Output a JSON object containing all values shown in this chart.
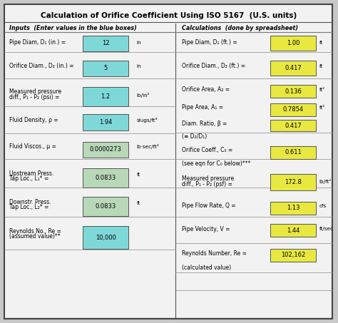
{
  "title": "Calculation of Orifice Coefficient Using ISO 5167  (U.S. units)",
  "col_divider": 0.52,
  "inputs_header": "Inputs  (Enter values in the blue boxes)",
  "calcs_header": "Calculations  (done by spreadsheet)",
  "bg_color": "#c8c8c8",
  "table_bg": "#f2f2f2",
  "border_color": "#888888",
  "cyan_color": "#7fd8d8",
  "green_color": "#b8d8b8",
  "yellow_color": "#e8e840",
  "left_labels": [
    "Pipe Diam, D₁ (in.) =",
    "Orifice Diam., D₂ (in.) =",
    "Measured pressure\ndiff., P₁ - P₂ (psi) =",
    "Fluid Density, ρ =",
    "Fluid Viscos., μ =",
    "Upstream Press.\nTap Loc., L₁* =",
    "Downstr. Press.\nTap Loc., L₂* =",
    "Reynolds No., Re =\n(assumed value)**"
  ],
  "left_values": [
    "12",
    "5",
    "1.2",
    "1.94",
    "0.0000273",
    "0.0833",
    "0.0833",
    "10,000"
  ],
  "left_units": [
    "in",
    "in",
    "lb/in²",
    "slugs/ft³",
    "lb·sec/ft²",
    "ft",
    "ft",
    ""
  ],
  "left_colors": [
    "#7fd8d8",
    "#7fd8d8",
    "#7fd8d8",
    "#7fd8d8",
    "#b8d8b8",
    "#b8d8b8",
    "#b8d8b8",
    "#7fd8d8"
  ],
  "right_rows": [
    {
      "label": "Pipe Diam, D₁ (ft.) =",
      "value": "1.00",
      "unit": "ft",
      "show_box": true
    },
    {
      "label": "Orifice Diam., D₂ (ft.) =",
      "value": "0.417",
      "unit": "ft",
      "show_box": true
    },
    {
      "label": "Orifice Area, A₂ =",
      "value": "0.136",
      "unit": "ft²",
      "show_box": true
    },
    {
      "label": "Pipe Area, A₁ =",
      "value": "0.7854",
      "unit": "ft²",
      "show_box": true
    },
    {
      "label": "Diam. Ratio, β =",
      "value": "0.417",
      "unit": "",
      "show_box": true
    },
    {
      "label": "(≡ D₂/D₁)",
      "value": "",
      "unit": "",
      "show_box": false
    },
    {
      "label": "Orifice Coeff., C₀ =",
      "value": "0.611",
      "unit": "",
      "show_box": true
    },
    {
      "label": "(see eqn for C₀ below)***",
      "value": "",
      "unit": "",
      "show_box": false
    },
    {
      "label": "Measured pressure\ndiff., P₁ - P₂ (psf) =",
      "value": "172.8",
      "unit": "lb/ft²",
      "show_box": true
    },
    {
      "label": "Pipe Flow Rate, Q =",
      "value": "1.13",
      "unit": "cfs",
      "show_box": true
    },
    {
      "label": "Pipe Velocity, V =",
      "value": "1.44",
      "unit": "ft/sec",
      "show_box": true
    },
    {
      "label": "Reynolds Number, Re =",
      "value": "102,162",
      "unit": "",
      "show_box": true
    },
    {
      "label": "(calculated value)",
      "value": "",
      "unit": "",
      "show_box": false
    }
  ]
}
